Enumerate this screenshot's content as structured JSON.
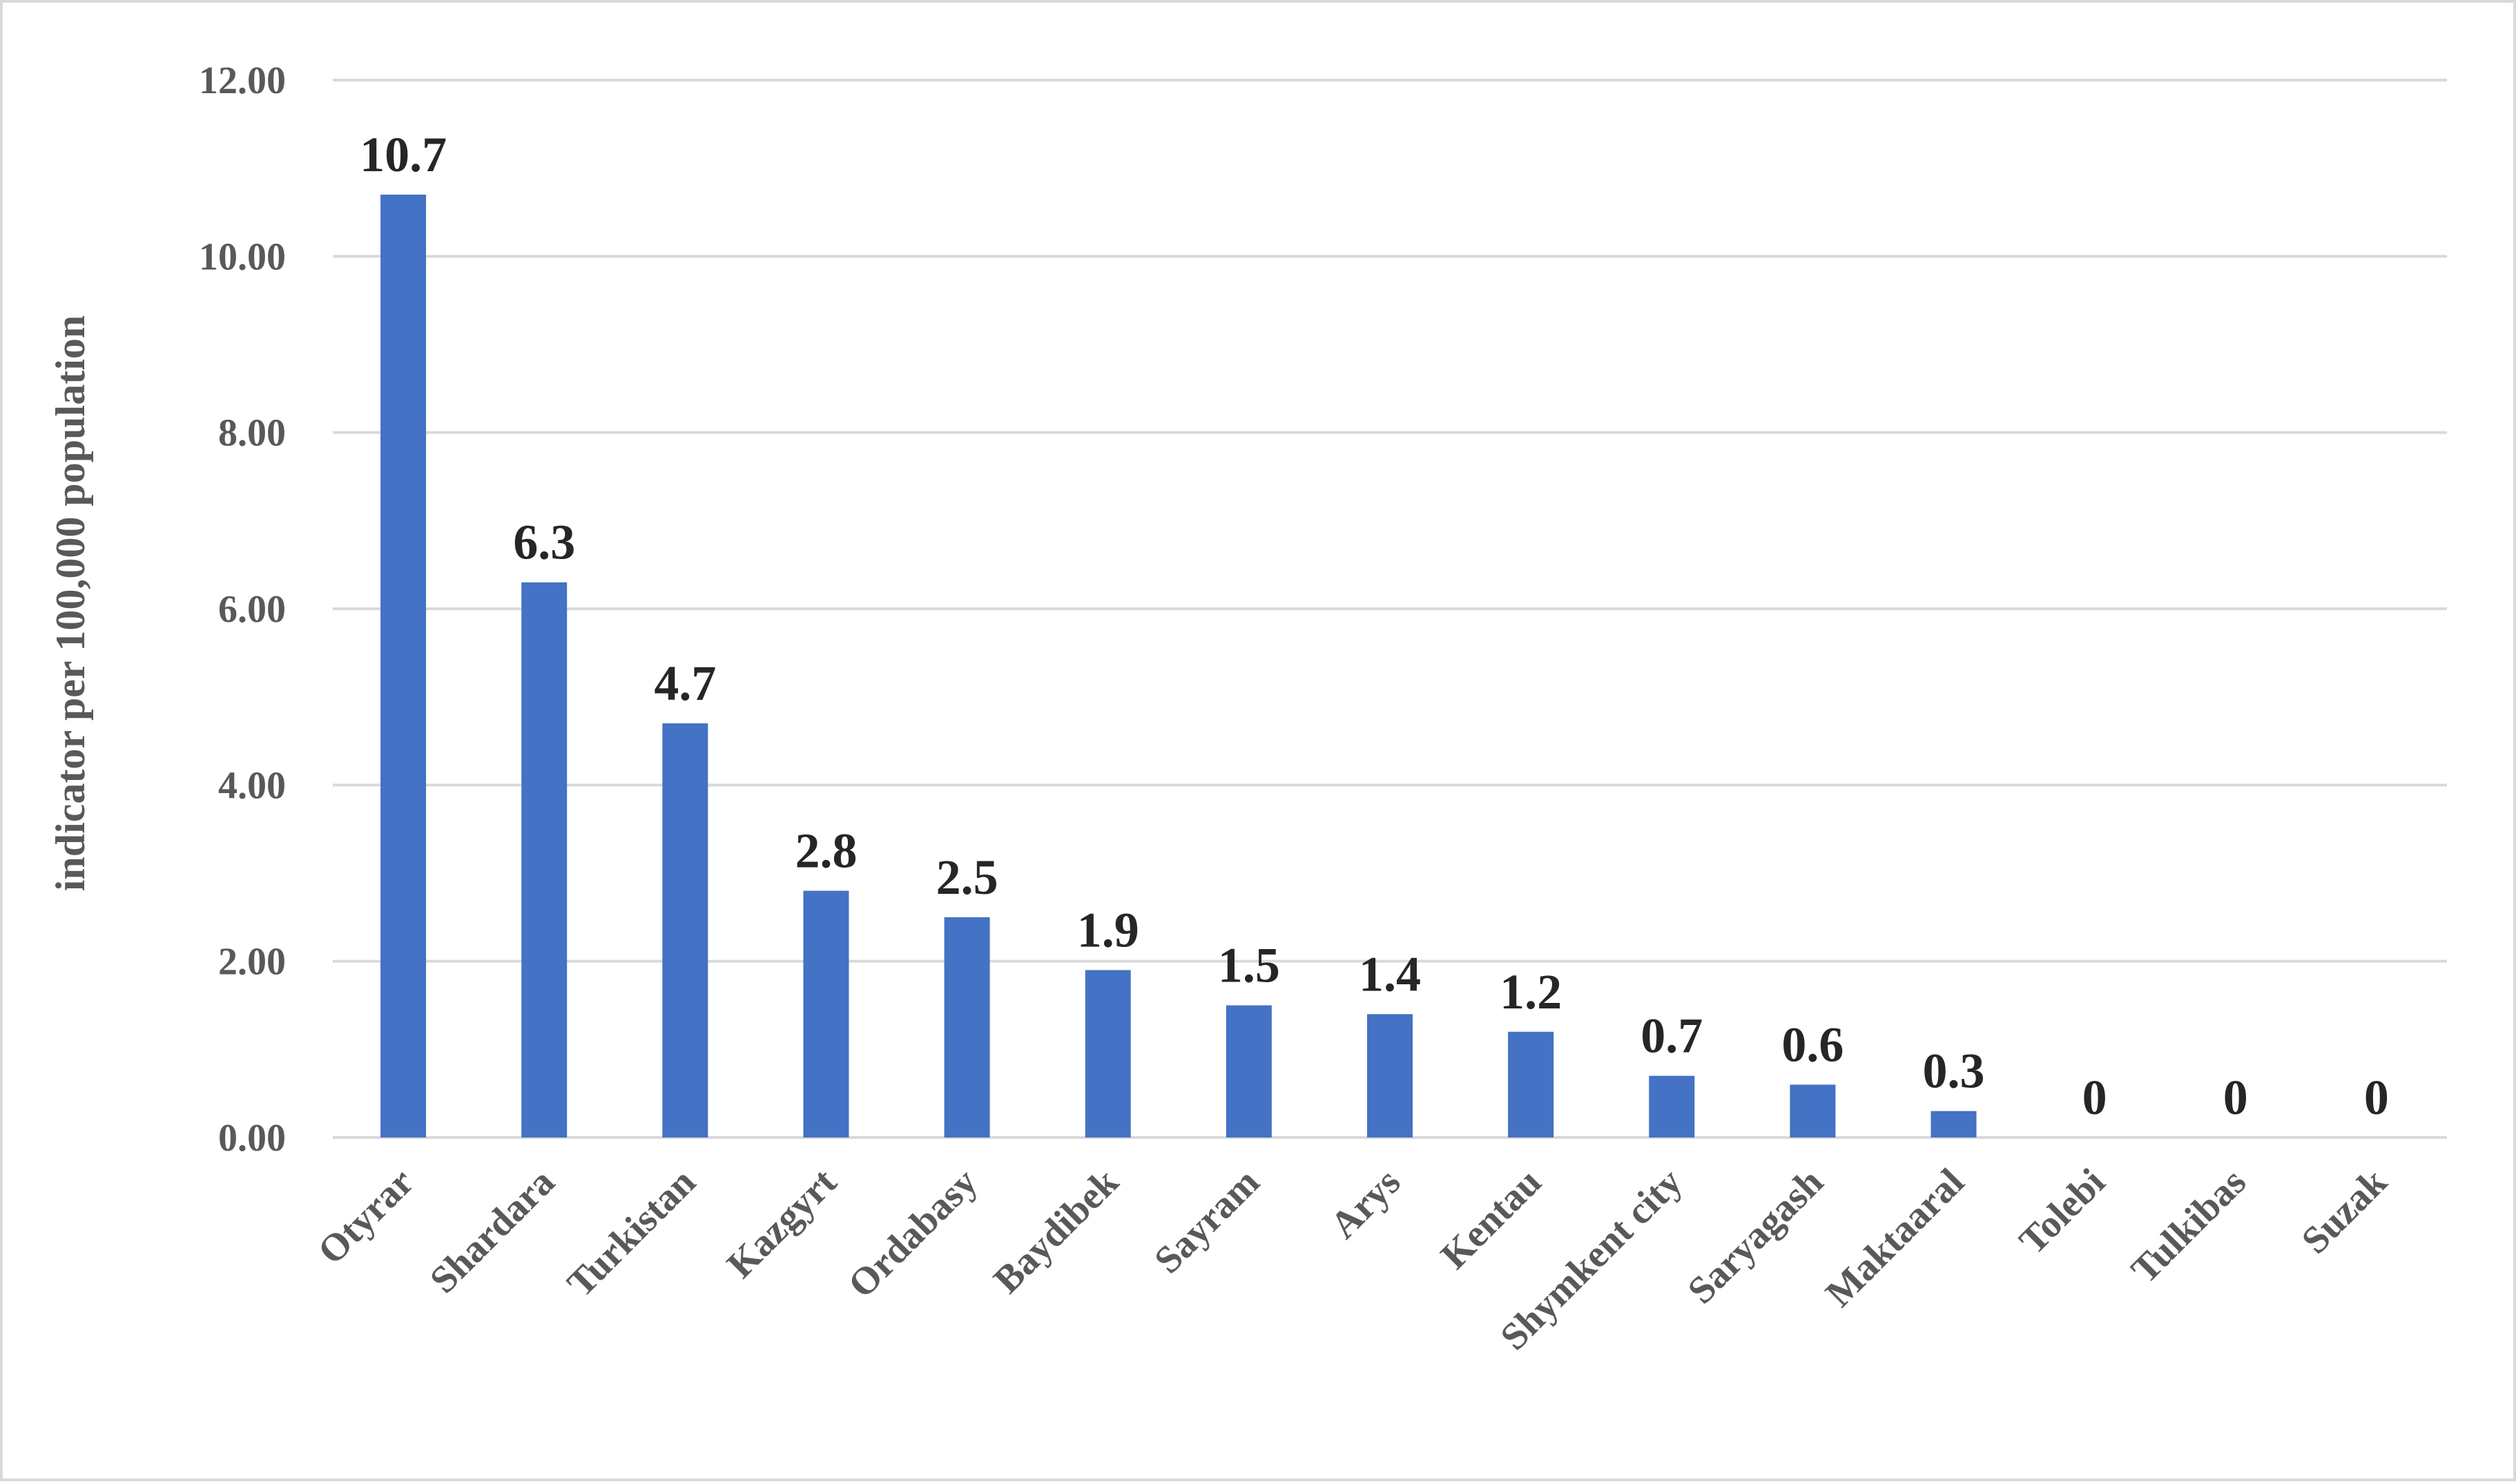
{
  "chart_data": {
    "type": "bar",
    "ylabel": "indicator per 100,000 population",
    "xlabel": "",
    "categories": [
      "Otyrar",
      "Shardara",
      "Turkistan",
      "Kazgyrt",
      "Ordabasy",
      "Baydibek",
      "Sayram",
      "Arys",
      "Kentau",
      "Shymkent city",
      "Saryagash",
      "Maktaaral",
      "Tolebi",
      "Tulkibas",
      "Suzak"
    ],
    "values": [
      10.7,
      6.3,
      4.7,
      2.8,
      2.5,
      1.9,
      1.5,
      1.4,
      1.2,
      0.7,
      0.6,
      0.3,
      0,
      0,
      0
    ],
    "data_labels": [
      "10.7",
      "6.3",
      "4.7",
      "2.8",
      "2.5",
      "1.9",
      "1.5",
      "1.4",
      "1.2",
      "0.7",
      "0.6",
      "0.3",
      "0",
      "0",
      "0"
    ],
    "ylim": [
      0,
      12
    ],
    "yticks": [
      0,
      2,
      4,
      6,
      8,
      10,
      12
    ],
    "ytick_labels": [
      "0.00",
      "2.00",
      "4.00",
      "6.00",
      "8.00",
      "10.00",
      "12.00"
    ],
    "grid": true,
    "legend": "none",
    "bar_color": "#4472C4",
    "grid_color": "#d9d9d9"
  }
}
